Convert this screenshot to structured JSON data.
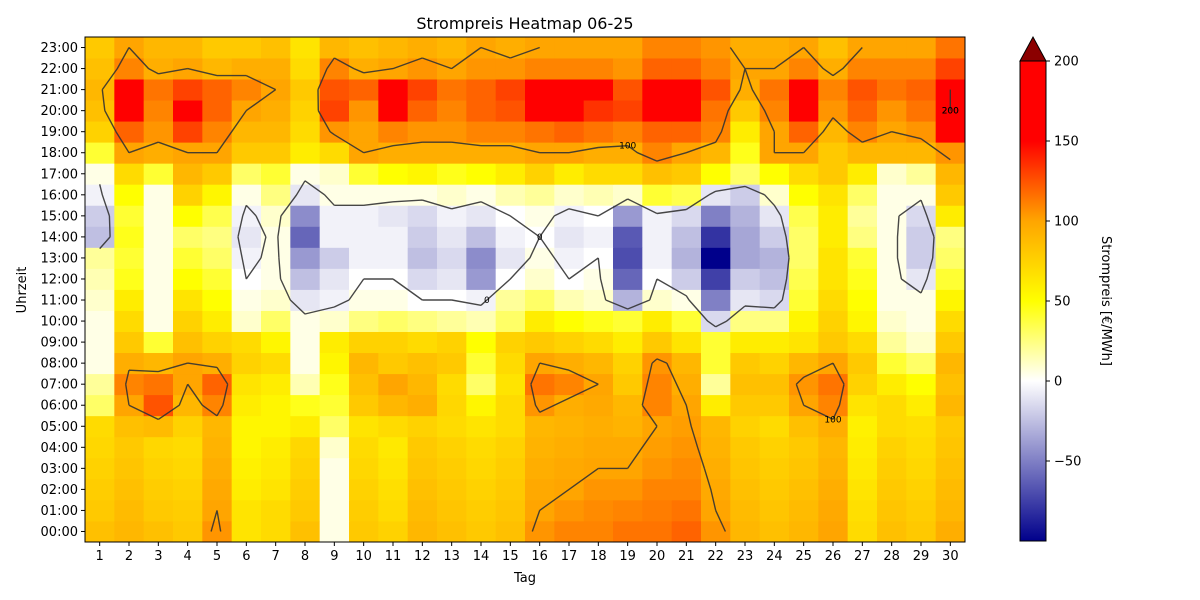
{
  "chart_data": {
    "type": "heatmap",
    "title": "Strompreis Heatmap 06-25",
    "xlabel": "Tag",
    "ylabel": "Uhrzeit",
    "colorbar_label": "Strompreis [€/MWh]",
    "colorbar_ticks": [
      -50,
      0,
      50,
      100,
      150,
      200
    ],
    "colorbar_range": [
      -100,
      200
    ],
    "colorbar_extend": "max",
    "contour_levels": [
      0,
      100,
      200
    ],
    "contour_labels": [
      "0",
      "100",
      "200"
    ],
    "x": [
      "1",
      "2",
      "3",
      "4",
      "5",
      "6",
      "7",
      "8",
      "9",
      "10",
      "11",
      "12",
      "13",
      "14",
      "15",
      "16",
      "17",
      "18",
      "19",
      "20",
      "21",
      "22",
      "23",
      "24",
      "25",
      "26",
      "27",
      "28",
      "29",
      "30"
    ],
    "y": [
      "00:00",
      "01:00",
      "02:00",
      "03:00",
      "04:00",
      "05:00",
      "06:00",
      "07:00",
      "08:00",
      "09:00",
      "10:00",
      "11:00",
      "12:00",
      "13:00",
      "14:00",
      "15:00",
      "16:00",
      "17:00",
      "18:00",
      "19:00",
      "20:00",
      "21:00",
      "22:00",
      "23:00"
    ],
    "values": [
      [
        85,
        90,
        85,
        80,
        105,
        65,
        70,
        85,
        5,
        80,
        75,
        90,
        85,
        80,
        85,
        105,
        110,
        110,
        115,
        115,
        120,
        105,
        90,
        85,
        90,
        100,
        70,
        85,
        80,
        95
      ],
      [
        80,
        88,
        80,
        78,
        100,
        65,
        70,
        80,
        5,
        78,
        70,
        88,
        82,
        78,
        82,
        100,
        105,
        108,
        110,
        112,
        115,
        100,
        88,
        82,
        88,
        98,
        68,
        82,
        78,
        90
      ],
      [
        78,
        85,
        78,
        75,
        98,
        60,
        65,
        78,
        5,
        75,
        68,
        85,
        80,
        75,
        80,
        98,
        100,
        105,
        105,
        110,
        110,
        98,
        85,
        80,
        85,
        95,
        65,
        80,
        75,
        88
      ],
      [
        75,
        82,
        75,
        72,
        95,
        58,
        62,
        75,
        5,
        72,
        65,
        82,
        78,
        72,
        78,
        95,
        98,
        100,
        100,
        105,
        108,
        95,
        82,
        78,
        82,
        92,
        62,
        78,
        72,
        85
      ],
      [
        72,
        80,
        72,
        70,
        92,
        55,
        60,
        72,
        10,
        70,
        62,
        80,
        75,
        70,
        75,
        92,
        95,
        98,
        98,
        102,
        105,
        92,
        80,
        75,
        80,
        90,
        60,
        75,
        70,
        82
      ],
      [
        70,
        85,
        88,
        75,
        90,
        55,
        55,
        60,
        30,
        65,
        70,
        75,
        70,
        65,
        70,
        90,
        92,
        95,
        92,
        100,
        102,
        90,
        75,
        70,
        85,
        95,
        58,
        70,
        68,
        80
      ],
      [
        30,
        100,
        125,
        90,
        110,
        60,
        55,
        45,
        40,
        80,
        90,
        95,
        72,
        55,
        70,
        105,
        95,
        98,
        90,
        110,
        100,
        60,
        80,
        80,
        100,
        110,
        65,
        70,
        60,
        90
      ],
      [
        20,
        110,
        115,
        100,
        120,
        65,
        60,
        15,
        45,
        85,
        100,
        90,
        70,
        30,
        65,
        115,
        110,
        100,
        80,
        110,
        95,
        20,
        85,
        85,
        105,
        115,
        75,
        60,
        50,
        85
      ],
      [
        5,
        95,
        90,
        100,
        95,
        75,
        70,
        5,
        55,
        90,
        80,
        85,
        80,
        40,
        70,
        100,
        95,
        90,
        75,
        105,
        90,
        40,
        80,
        75,
        90,
        100,
        80,
        40,
        30,
        90
      ],
      [
        5,
        80,
        40,
        85,
        75,
        70,
        55,
        5,
        60,
        75,
        75,
        70,
        75,
        50,
        75,
        80,
        75,
        70,
        60,
        80,
        65,
        40,
        60,
        60,
        65,
        80,
        70,
        20,
        10,
        80
      ],
      [
        5,
        70,
        5,
        75,
        60,
        10,
        30,
        5,
        10,
        25,
        30,
        25,
        20,
        15,
        30,
        60,
        50,
        45,
        40,
        60,
        40,
        -15,
        25,
        25,
        55,
        75,
        55,
        10,
        5,
        70
      ],
      [
        10,
        60,
        5,
        65,
        50,
        5,
        10,
        -10,
        -5,
        5,
        5,
        0,
        0,
        -5,
        20,
        30,
        15,
        10,
        -30,
        10,
        5,
        -50,
        -10,
        -15,
        40,
        70,
        50,
        5,
        5,
        55
      ],
      [
        15,
        45,
        5,
        50,
        40,
        0,
        5,
        -25,
        -10,
        0,
        0,
        -15,
        -10,
        -40,
        0,
        10,
        0,
        5,
        -60,
        0,
        -20,
        -75,
        -20,
        -25,
        35,
        65,
        45,
        5,
        -10,
        40
      ],
      [
        20,
        40,
        5,
        40,
        30,
        -5,
        5,
        -40,
        -20,
        -5,
        -5,
        -25,
        -15,
        -45,
        -10,
        5,
        -5,
        0,
        -70,
        -5,
        -30,
        -100,
        -35,
        -30,
        30,
        65,
        40,
        5,
        -20,
        30
      ],
      [
        -25,
        45,
        5,
        30,
        25,
        -10,
        5,
        -60,
        -5,
        -5,
        -5,
        -20,
        -10,
        -25,
        -5,
        0,
        -10,
        -5,
        -65,
        -5,
        -25,
        -80,
        -35,
        -20,
        30,
        60,
        25,
        5,
        -20,
        25
      ],
      [
        -20,
        40,
        5,
        50,
        35,
        -5,
        10,
        -45,
        -5,
        -5,
        -10,
        -15,
        -5,
        -10,
        0,
        5,
        -5,
        0,
        -40,
        -5,
        -15,
        -50,
        -30,
        -10,
        35,
        60,
        20,
        5,
        -15,
        60
      ],
      [
        -5,
        50,
        5,
        75,
        55,
        5,
        25,
        -10,
        5,
        5,
        5,
        5,
        10,
        5,
        15,
        20,
        10,
        15,
        10,
        40,
        35,
        -10,
        -20,
        10,
        50,
        65,
        30,
        5,
        5,
        80
      ],
      [
        5,
        70,
        40,
        90,
        80,
        30,
        40,
        5,
        10,
        40,
        50,
        55,
        45,
        50,
        60,
        75,
        60,
        70,
        70,
        85,
        80,
        50,
        30,
        50,
        70,
        80,
        60,
        10,
        20,
        90
      ],
      [
        40,
        100,
        95,
        100,
        100,
        80,
        80,
        60,
        70,
        100,
        95,
        95,
        95,
        95,
        95,
        100,
        100,
        95,
        95,
        110,
        100,
        90,
        45,
        100,
        100,
        80,
        90,
        90,
        90,
        105
      ],
      [
        75,
        120,
        105,
        130,
        110,
        90,
        90,
        70,
        105,
        100,
        110,
        105,
        105,
        110,
        110,
        115,
        120,
        115,
        110,
        120,
        120,
        110,
        60,
        100,
        120,
        90,
        110,
        100,
        105,
        160
      ],
      [
        85,
        170,
        110,
        165,
        120,
        100,
        95,
        75,
        130,
        105,
        195,
        120,
        110,
        120,
        125,
        165,
        195,
        135,
        130,
        200,
        150,
        115,
        80,
        110,
        160,
        105,
        120,
        105,
        115,
        200
      ],
      [
        90,
        200,
        115,
        130,
        120,
        110,
        100,
        80,
        125,
        120,
        160,
        130,
        115,
        120,
        130,
        165,
        185,
        160,
        125,
        160,
        150,
        125,
        95,
        115,
        150,
        110,
        125,
        115,
        120,
        200
      ],
      [
        85,
        110,
        95,
        100,
        90,
        95,
        95,
        70,
        110,
        95,
        100,
        105,
        100,
        105,
        105,
        110,
        110,
        110,
        105,
        120,
        120,
        110,
        100,
        100,
        110,
        95,
        110,
        110,
        110,
        130
      ],
      [
        80,
        100,
        90,
        90,
        80,
        80,
        85,
        65,
        90,
        85,
        90,
        95,
        90,
        100,
        95,
        100,
        100,
        100,
        100,
        110,
        110,
        105,
        95,
        95,
        100,
        85,
        100,
        100,
        100,
        115
      ]
    ]
  }
}
